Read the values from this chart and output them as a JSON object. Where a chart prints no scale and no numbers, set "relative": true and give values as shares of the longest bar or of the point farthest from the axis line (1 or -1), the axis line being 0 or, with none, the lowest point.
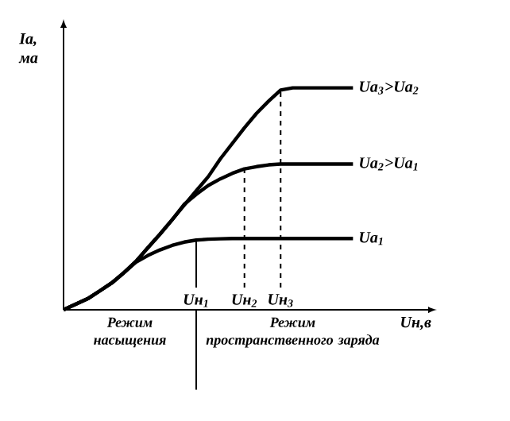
{
  "chart_data": {
    "type": "line",
    "relative": true,
    "xlabel": "Uн,в",
    "ylabel": "Iа, ма",
    "marker": "none",
    "line_style": "solid",
    "categories": [
      null,
      null,
      null,
      null,
      null,
      null,
      null,
      null,
      null,
      null,
      null,
      "Uн$_{1}$",
      null,
      null,
      null,
      "Uн$_{2}$",
      null,
      null,
      "Uн$_{3}$",
      null,
      null,
      null,
      null,
      null,
      null
    ],
    "series": [
      {
        "name": "Uа$_{3}$>Uа$_{2}$",
        "color": "#000000",
        "values": [
          0,
          0.025,
          0.05,
          0.085,
          0.121,
          0.167,
          0.218,
          0.28,
          0.341,
          0.406,
          0.471,
          0.536,
          0.6,
          0.68,
          0.75,
          0.82,
          0.885,
          0.94,
          0.99,
          1,
          1,
          1,
          1,
          1,
          1
        ]
      },
      {
        "name": "Uа$_{2}$>Uа$_{1}$",
        "color": "#000000",
        "values": [
          0,
          0.025,
          0.05,
          0.085,
          0.121,
          0.167,
          0.218,
          0.28,
          0.341,
          0.405,
          0.475,
          0.52,
          0.56,
          0.59,
          0.615,
          0.635,
          0.645,
          0.653,
          0.657,
          0.657,
          0.657,
          0.657,
          0.657,
          0.657,
          0.657
        ]
      },
      {
        "name": "Uа$_{1}$",
        "color": "#000000",
        "values": [
          0,
          0.025,
          0.05,
          0.085,
          0.121,
          0.167,
          0.214,
          0.245,
          0.27,
          0.29,
          0.305,
          0.314,
          0.318,
          0.32,
          0.321,
          0.321,
          0.321,
          0.321,
          0.321,
          0.321,
          0.321,
          0.321,
          0.321,
          0.321,
          0.321
        ]
      }
    ],
    "ref_lines": [
      {
        "axis": "x",
        "value": "Uн$_{1}$",
        "line_style": "solid"
      },
      {
        "axis": "x",
        "value": "Uн$_{2}$",
        "line_style": "dashed"
      },
      {
        "axis": "x",
        "value": "Uн$_{3}$",
        "line_style": "dashed"
      }
    ],
    "annotations": [
      "Режим насыщения",
      "Режим пространственного заряда"
    ]
  }
}
